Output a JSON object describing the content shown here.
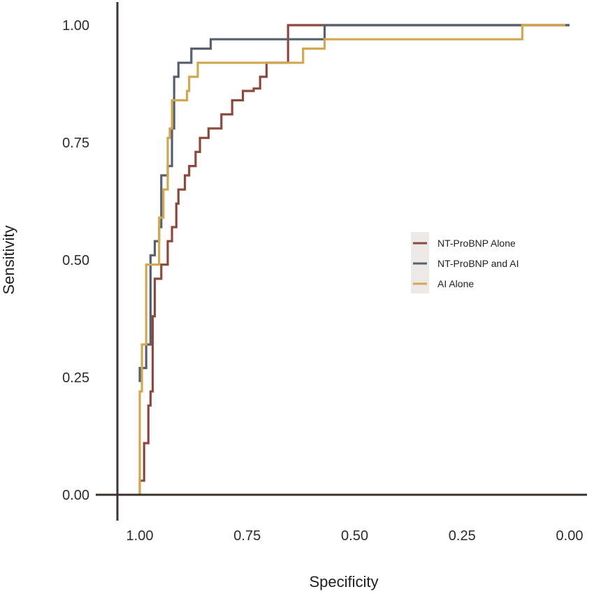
{
  "chart_data": {
    "type": "line",
    "xlabel": "Specificity",
    "ylabel": "Sensitivity",
    "x_reversed": true,
    "xlim": [
      1.05,
      -0.01
    ],
    "ylim": [
      -0.04,
      1.04
    ],
    "x_ticks": [
      1.0,
      0.75,
      0.5,
      0.25,
      0.0
    ],
    "x_tick_labels": [
      "1.00",
      "0.75",
      "0.50",
      "0.25",
      "0.00"
    ],
    "y_ticks": [
      0.0,
      0.25,
      0.5,
      0.75,
      1.0
    ],
    "y_tick_labels": [
      "0.00",
      "0.25",
      "0.50",
      "0.75",
      "1.00"
    ],
    "legend_position": "right",
    "grid": false,
    "colors": {
      "axis": "#3a332f",
      "legend_bg": "#ece9e6"
    },
    "series": [
      {
        "name": "NT-ProBNP Alone",
        "color": "#8b4a3c",
        "points": [
          [
            1.0,
            0.0
          ],
          [
            1.0,
            0.03
          ],
          [
            0.99,
            0.03
          ],
          [
            0.99,
            0.11
          ],
          [
            0.98,
            0.11
          ],
          [
            0.98,
            0.19
          ],
          [
            0.975,
            0.19
          ],
          [
            0.975,
            0.22
          ],
          [
            0.97,
            0.22
          ],
          [
            0.97,
            0.38
          ],
          [
            0.965,
            0.38
          ],
          [
            0.965,
            0.46
          ],
          [
            0.95,
            0.46
          ],
          [
            0.95,
            0.49
          ],
          [
            0.935,
            0.49
          ],
          [
            0.935,
            0.54
          ],
          [
            0.925,
            0.54
          ],
          [
            0.925,
            0.57
          ],
          [
            0.915,
            0.57
          ],
          [
            0.915,
            0.62
          ],
          [
            0.91,
            0.62
          ],
          [
            0.91,
            0.65
          ],
          [
            0.895,
            0.65
          ],
          [
            0.895,
            0.68
          ],
          [
            0.885,
            0.68
          ],
          [
            0.885,
            0.7
          ],
          [
            0.87,
            0.7
          ],
          [
            0.87,
            0.73
          ],
          [
            0.86,
            0.73
          ],
          [
            0.86,
            0.76
          ],
          [
            0.84,
            0.76
          ],
          [
            0.84,
            0.78
          ],
          [
            0.81,
            0.78
          ],
          [
            0.81,
            0.81
          ],
          [
            0.785,
            0.81
          ],
          [
            0.785,
            0.84
          ],
          [
            0.76,
            0.84
          ],
          [
            0.76,
            0.86
          ],
          [
            0.735,
            0.86
          ],
          [
            0.735,
            0.865
          ],
          [
            0.72,
            0.865
          ],
          [
            0.72,
            0.89
          ],
          [
            0.705,
            0.89
          ],
          [
            0.705,
            0.92
          ],
          [
            0.655,
            0.92
          ],
          [
            0.655,
            1.0
          ],
          [
            0.59,
            1.0
          ],
          [
            0.59,
            1.0
          ],
          [
            0.0,
            1.0
          ]
        ]
      },
      {
        "name": "NT-ProBNP and AI",
        "color": "#56606e",
        "points": [
          [
            1.0,
            0.24
          ],
          [
            1.0,
            0.27
          ],
          [
            0.985,
            0.27
          ],
          [
            0.985,
            0.32
          ],
          [
            0.975,
            0.32
          ],
          [
            0.975,
            0.51
          ],
          [
            0.965,
            0.51
          ],
          [
            0.965,
            0.54
          ],
          [
            0.955,
            0.54
          ],
          [
            0.955,
            0.57
          ],
          [
            0.95,
            0.57
          ],
          [
            0.95,
            0.68
          ],
          [
            0.935,
            0.68
          ],
          [
            0.935,
            0.7
          ],
          [
            0.925,
            0.7
          ],
          [
            0.925,
            0.78
          ],
          [
            0.92,
            0.78
          ],
          [
            0.92,
            0.89
          ],
          [
            0.91,
            0.89
          ],
          [
            0.91,
            0.92
          ],
          [
            0.895,
            0.92
          ],
          [
            0.895,
            0.92
          ],
          [
            0.88,
            0.92
          ],
          [
            0.88,
            0.95
          ],
          [
            0.835,
            0.95
          ],
          [
            0.835,
            0.97
          ],
          [
            0.57,
            0.97
          ],
          [
            0.57,
            1.0
          ],
          [
            0.11,
            1.0
          ],
          [
            0.11,
            1.0
          ],
          [
            0.0,
            1.0
          ]
        ]
      },
      {
        "name": "AI Alone",
        "color": "#d1a851",
        "points": [
          [
            1.0,
            0.0
          ],
          [
            1.0,
            0.22
          ],
          [
            0.995,
            0.22
          ],
          [
            0.995,
            0.32
          ],
          [
            0.985,
            0.32
          ],
          [
            0.985,
            0.49
          ],
          [
            0.955,
            0.49
          ],
          [
            0.955,
            0.59
          ],
          [
            0.945,
            0.59
          ],
          [
            0.945,
            0.65
          ],
          [
            0.935,
            0.65
          ],
          [
            0.935,
            0.76
          ],
          [
            0.93,
            0.76
          ],
          [
            0.93,
            0.78
          ],
          [
            0.925,
            0.78
          ],
          [
            0.925,
            0.84
          ],
          [
            0.89,
            0.84
          ],
          [
            0.89,
            0.86
          ],
          [
            0.885,
            0.86
          ],
          [
            0.885,
            0.89
          ],
          [
            0.865,
            0.89
          ],
          [
            0.865,
            0.92
          ],
          [
            0.62,
            0.92
          ],
          [
            0.62,
            0.95
          ],
          [
            0.57,
            0.95
          ],
          [
            0.57,
            0.97
          ],
          [
            0.11,
            0.97
          ],
          [
            0.11,
            1.0
          ],
          [
            0.01,
            1.0
          ]
        ]
      }
    ]
  }
}
